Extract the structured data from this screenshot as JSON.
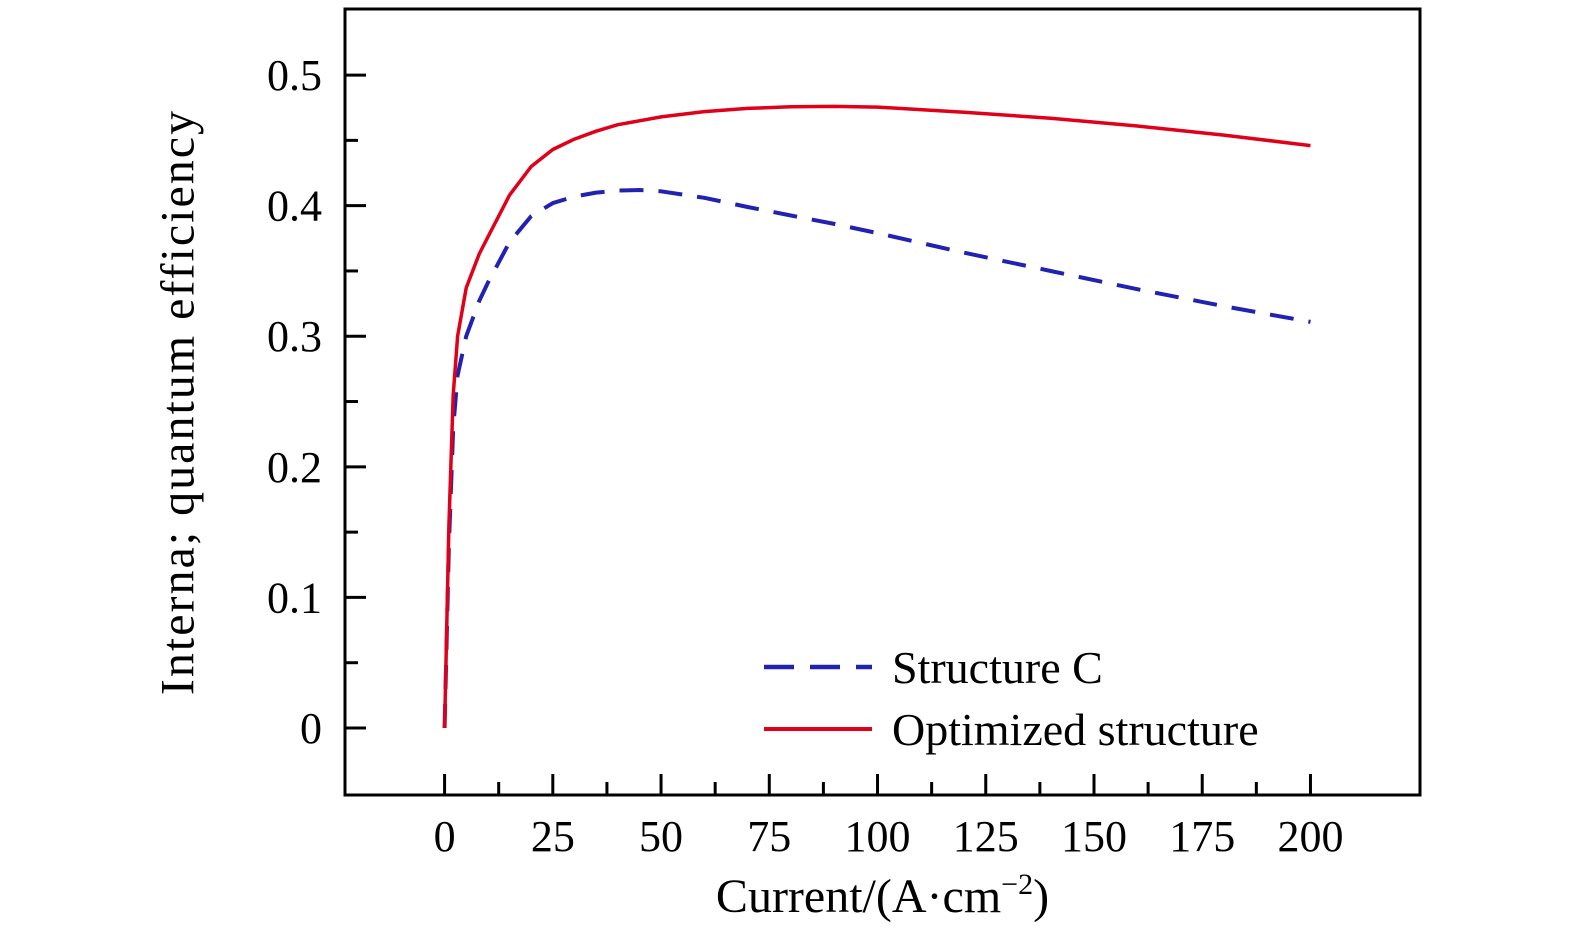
{
  "page": {
    "background": "#ffffff"
  },
  "chart_data": {
    "type": "line",
    "title": "",
    "xlabel": {
      "prefix": "Current/(A·cm",
      "exponent": "−2",
      "suffix": ")",
      "full": "Current/(A·cm⁻²)"
    },
    "ylabel": "Interna; quantum efficiency",
    "axes": {
      "xlim": [
        -23,
        225.3
      ],
      "ylim": [
        -0.0513,
        0.5506
      ],
      "x_ticks": [
        0,
        25,
        50,
        75,
        100,
        125,
        150,
        175,
        200
      ],
      "x_ticklabels": [
        "0",
        "25",
        "50",
        "75",
        "100",
        "125",
        "150",
        "175",
        "200"
      ],
      "x_minor_ticks": [
        12.5,
        37.5,
        62.5,
        87.5,
        112.5,
        137.5,
        162.5,
        187.5
      ],
      "y_ticks": [
        0,
        0.1,
        0.2,
        0.3,
        0.4,
        0.5
      ],
      "y_ticklabels": [
        "0",
        "0.1",
        "0.2",
        "0.3",
        "0.4",
        "0.5"
      ],
      "y_minor_ticks": [
        0.05,
        0.15,
        0.25,
        0.35,
        0.45
      ],
      "grid": false,
      "axis_color": "#000000"
    },
    "series": [
      {
        "name": "Structure C",
        "color": "#2222b2",
        "style": "dashed",
        "x": [
          0,
          1,
          2,
          3,
          5,
          8,
          10,
          15,
          20,
          25,
          30,
          35,
          40,
          45,
          50,
          60,
          70,
          80,
          90,
          100,
          120,
          140,
          160,
          180,
          200
        ],
        "y": [
          0,
          0.14,
          0.23,
          0.27,
          0.3,
          0.327,
          0.341,
          0.372,
          0.392,
          0.402,
          0.407,
          0.41,
          0.4115,
          0.412,
          0.411,
          0.406,
          0.399,
          0.3925,
          0.386,
          0.379,
          0.364,
          0.35,
          0.336,
          0.323,
          0.311
        ]
      },
      {
        "name": "Optimized structure",
        "color": "#e10019",
        "style": "solid",
        "x": [
          0,
          1,
          2,
          3,
          5,
          8,
          10,
          15,
          20,
          25,
          30,
          35,
          40,
          50,
          60,
          70,
          80,
          90,
          100,
          120,
          140,
          160,
          180,
          200
        ],
        "y": [
          0,
          0.155,
          0.255,
          0.3,
          0.337,
          0.363,
          0.376,
          0.408,
          0.43,
          0.443,
          0.451,
          0.457,
          0.462,
          0.468,
          0.472,
          0.4745,
          0.4757,
          0.476,
          0.4755,
          0.4715,
          0.467,
          0.461,
          0.454,
          0.446
        ]
      }
    ],
    "legend": {
      "position": "lower-right-inside",
      "frame": false
    }
  }
}
